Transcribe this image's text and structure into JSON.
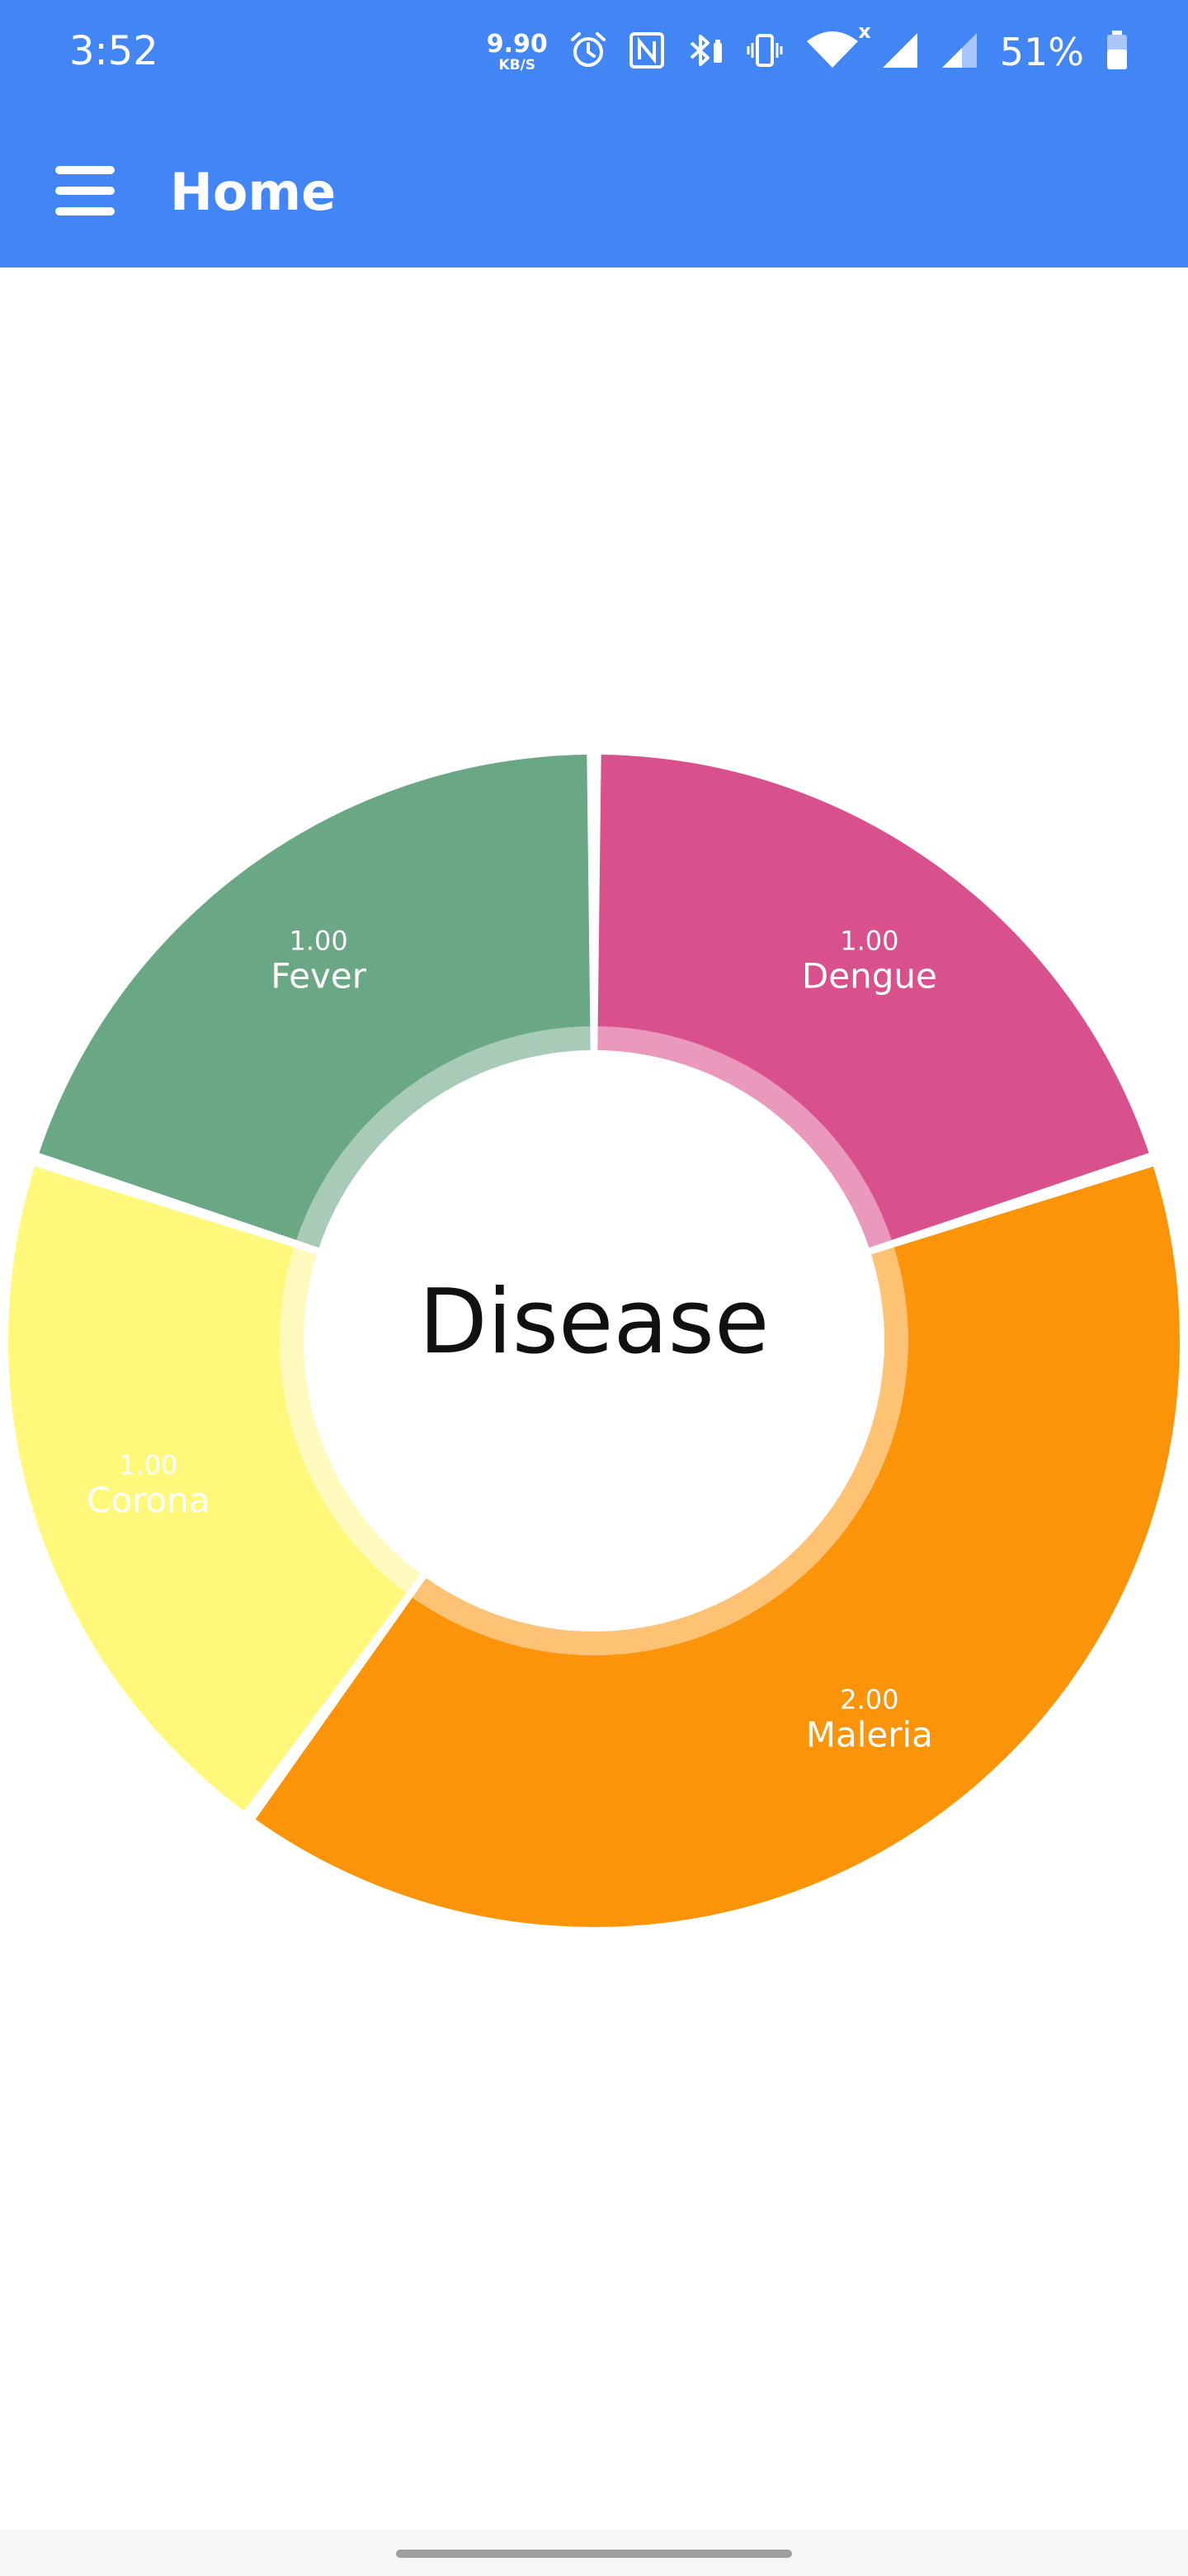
{
  "status_bar": {
    "time": "3:52",
    "net_speed_value": "9.90",
    "net_speed_unit": "KB/S",
    "network_badge": "x",
    "battery": "51%",
    "icons": [
      "alarm-icon",
      "nfc-icon",
      "bluetooth-battery-icon",
      "vibrate-icon",
      "wifi-icon",
      "signal-icon",
      "signal-icon",
      "battery-icon"
    ]
  },
  "app_bar": {
    "title": "Home",
    "menu_icon": "hamburger-menu-icon"
  },
  "chart_data": {
    "type": "pie",
    "title": "Disease",
    "categories": [
      "Dengue",
      "Maleria",
      "Corona",
      "Fever"
    ],
    "values": [
      1,
      2,
      1,
      1
    ],
    "value_labels": [
      "1.00",
      "2.00",
      "1.00",
      "1.00"
    ],
    "colors": [
      "#d9518c",
      "#fb9409",
      "#fff87a",
      "#6aa784"
    ],
    "inner_ring_colors": [
      "#eb98bd",
      "#fdc274",
      "#fffbbe",
      "#a8cbb7"
    ],
    "label_color": "#ffffff"
  },
  "nav": {
    "home_indicator": "gesture-pill"
  }
}
